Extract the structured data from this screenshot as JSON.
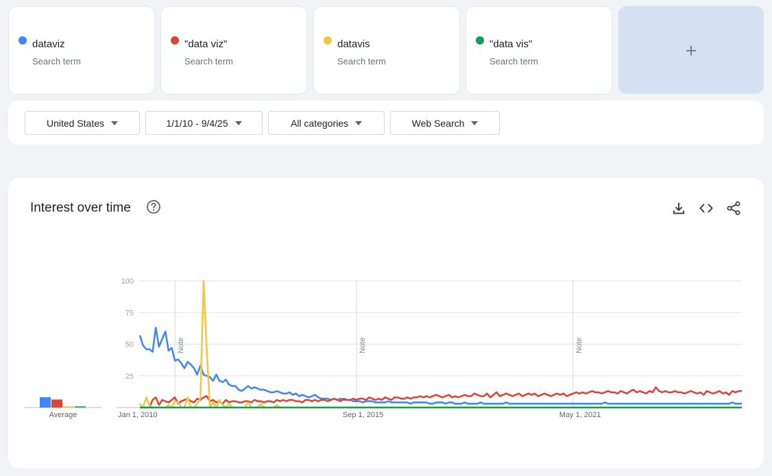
{
  "search_terms": [
    {
      "name": "dataviz",
      "sub": "Search term",
      "color": "#4285f4"
    },
    {
      "name": "\"data viz\"",
      "sub": "Search term",
      "color": "#db4437"
    },
    {
      "name": "datavis",
      "sub": "Search term",
      "color": "#f4c542"
    },
    {
      "name": "\"data vis\"",
      "sub": "Search term",
      "color": "#0f9d58"
    }
  ],
  "add_term": {
    "label": "+"
  },
  "filters": {
    "region": "United States",
    "date_range": "1/1/10 - 9/4/25",
    "category": "All categories",
    "property": "Web Search"
  },
  "chart_card": {
    "title": "Interest over time",
    "icons": [
      "help-icon",
      "download-icon",
      "embed-icon",
      "share-icon"
    ]
  },
  "chart_data": {
    "type": "line",
    "title": "Interest over time",
    "xlabel": "",
    "ylabel": "",
    "ylim": [
      0,
      100
    ],
    "yticks": [
      25,
      50,
      75,
      100
    ],
    "xtick_labels": [
      {
        "label": "Jan 1, 2010",
        "month_index": 0
      },
      {
        "label": "Sep 1, 2015",
        "month_index": 68
      },
      {
        "label": "May 1, 2021",
        "month_index": 136
      }
    ],
    "notes": [
      {
        "label": "Note",
        "month_index": 11
      },
      {
        "label": "Note",
        "month_index": 68
      },
      {
        "label": "Note",
        "month_index": 136
      }
    ],
    "x_start": "2010-01",
    "x_end": "2025-09",
    "interval": "monthly",
    "average_label": "Average",
    "averages": [
      9,
      7,
      1,
      1
    ],
    "series": [
      {
        "name": "dataviz",
        "color": "#4285f4",
        "values": [
          57,
          49,
          46,
          46,
          44,
          63,
          48,
          54,
          60,
          45,
          47,
          37,
          38,
          35,
          31,
          36,
          34,
          31,
          26,
          33,
          26,
          25,
          24,
          21,
          26,
          21,
          20,
          22,
          18,
          17,
          17,
          14,
          13,
          15,
          17,
          15,
          16,
          15,
          14,
          14,
          13,
          12,
          12,
          13,
          12,
          11,
          11,
          12,
          10,
          11,
          9,
          10,
          9,
          8,
          9,
          10,
          8,
          7,
          7,
          7,
          6,
          7,
          6,
          7,
          6,
          6,
          6,
          5,
          5,
          5,
          4,
          5,
          5,
          5,
          4,
          4,
          4,
          4,
          5,
          4,
          4,
          4,
          4,
          4,
          4,
          3,
          4,
          4,
          4,
          4,
          4,
          3,
          3,
          4,
          4,
          4,
          3,
          4,
          4,
          3,
          3,
          3,
          4,
          3,
          3,
          3,
          3,
          4,
          3,
          3,
          3,
          3,
          3,
          3,
          3,
          4,
          3,
          3,
          3,
          3,
          3,
          3,
          3,
          3,
          3,
          3,
          3,
          3,
          3,
          3,
          3,
          3,
          3,
          3,
          3,
          3,
          3,
          3,
          3,
          3,
          3,
          3,
          3,
          3,
          3,
          3,
          4,
          3,
          3,
          3,
          3,
          3,
          3,
          3,
          3,
          3,
          3,
          3,
          3,
          3,
          3,
          3,
          3,
          3,
          3,
          3,
          3,
          3,
          3,
          3,
          3,
          3,
          3,
          3,
          3,
          3,
          3,
          3,
          3,
          3,
          3,
          3,
          3,
          3,
          3,
          3,
          4,
          3,
          3,
          3
        ]
      },
      {
        "name": "\"data viz\"",
        "color": "#db4437",
        "values": [
          0,
          0,
          0,
          0,
          6,
          8,
          2,
          6,
          5,
          4,
          6,
          8,
          3,
          5,
          6,
          7,
          5,
          4,
          7,
          6,
          8,
          9,
          5,
          6,
          4,
          5,
          3,
          6,
          4,
          5,
          5,
          4,
          4,
          5,
          5,
          4,
          6,
          5,
          5,
          4,
          5,
          5,
          4,
          6,
          5,
          6,
          5,
          6,
          6,
          5,
          5,
          4,
          6,
          6,
          5,
          6,
          5,
          6,
          6,
          5,
          6,
          7,
          6,
          5,
          7,
          6,
          6,
          7,
          6,
          7,
          7,
          6,
          8,
          7,
          6,
          7,
          6,
          8,
          7,
          6,
          8,
          8,
          7,
          7,
          8,
          7,
          8,
          8,
          9,
          8,
          9,
          8,
          9,
          10,
          9,
          8,
          9,
          10,
          8,
          9,
          8,
          9,
          10,
          9,
          9,
          11,
          10,
          9,
          9,
          11,
          8,
          10,
          12,
          9,
          10,
          11,
          10,
          9,
          10,
          11,
          9,
          10,
          11,
          10,
          11,
          9,
          10,
          11,
          10,
          9,
          10,
          11,
          10,
          11,
          9,
          10,
          11,
          12,
          11,
          12,
          11,
          12,
          13,
          12,
          12,
          11,
          12,
          13,
          12,
          12,
          11,
          13,
          12,
          11,
          13,
          14,
          12,
          13,
          12,
          11,
          13,
          12,
          16,
          13,
          12,
          13,
          12,
          12,
          13,
          12,
          12,
          11,
          12,
          13,
          12,
          11,
          12,
          10,
          13,
          12,
          11,
          12,
          13,
          11,
          12,
          10,
          13,
          12,
          13,
          13
        ]
      },
      {
        "name": "datavis",
        "color": "#f4c542",
        "values": [
          3,
          0,
          8,
          2,
          0,
          0,
          0,
          0,
          0,
          2,
          0,
          5,
          4,
          0,
          0,
          8,
          0,
          0,
          3,
          7,
          100,
          45,
          0,
          4,
          0,
          6,
          2,
          0,
          3,
          0,
          0,
          0,
          0,
          0,
          4,
          0,
          0,
          0,
          3,
          0,
          0,
          0,
          0,
          2,
          0,
          0,
          0,
          0,
          0,
          0,
          0,
          0,
          0,
          0,
          0,
          0,
          0,
          0,
          0,
          0,
          0,
          0,
          0,
          0,
          0,
          0,
          0,
          0,
          0,
          0,
          0,
          0,
          0,
          0,
          0,
          0,
          0,
          0,
          0,
          0,
          0,
          0,
          0,
          0,
          0,
          0,
          0,
          0,
          0,
          0,
          0,
          0,
          0,
          0,
          0,
          0,
          0,
          0,
          0,
          0,
          0,
          0,
          0,
          0,
          0,
          0,
          0,
          0,
          0,
          0,
          0,
          0,
          0,
          0,
          0,
          0,
          0,
          0,
          0,
          0,
          0,
          0,
          0,
          0,
          0,
          0,
          0,
          0,
          0,
          0,
          0,
          0,
          0,
          0,
          0,
          0,
          0,
          0,
          0,
          0,
          0,
          0,
          0,
          0,
          0,
          0,
          0,
          0,
          0,
          0,
          0,
          0,
          0,
          0,
          0,
          0,
          0,
          0,
          0,
          0,
          0,
          0,
          0,
          0,
          0,
          0,
          0,
          0,
          0,
          0,
          0,
          0,
          0,
          0,
          0,
          0,
          0,
          0,
          0,
          0,
          0,
          0,
          0,
          0,
          0,
          0,
          0,
          0,
          0,
          0
        ]
      },
      {
        "name": "\"data vis\"",
        "color": "#0f9d58",
        "values": [
          0,
          0,
          0,
          0,
          0,
          0,
          0,
          0,
          0,
          0,
          0,
          0,
          0,
          0,
          0,
          0,
          0,
          0,
          0,
          0,
          0,
          0,
          0,
          0,
          0,
          0,
          0,
          0,
          0,
          0,
          0,
          0,
          0,
          0,
          0,
          0,
          0,
          0,
          0,
          0,
          0,
          0,
          0,
          0,
          0,
          0,
          0,
          0,
          0,
          0,
          0,
          0,
          0,
          0,
          0,
          0,
          0,
          0,
          0,
          0,
          0,
          0,
          0,
          0,
          0,
          0,
          0,
          0,
          0,
          0,
          0,
          0,
          0,
          0,
          0,
          0,
          0,
          0,
          0,
          0,
          0,
          0,
          0,
          0,
          0,
          0,
          0,
          0,
          0,
          0,
          0,
          0,
          0,
          0,
          0,
          0,
          0,
          0,
          0,
          0,
          0,
          0,
          0,
          0,
          0,
          0,
          0,
          0,
          0,
          0,
          0,
          0,
          0,
          0,
          0,
          0,
          0,
          0,
          0,
          0,
          0,
          0,
          0,
          0,
          0,
          0,
          0,
          0,
          0,
          0,
          0,
          0,
          0,
          0,
          0,
          0,
          0,
          0,
          0,
          0,
          0,
          0,
          0,
          0,
          0,
          0,
          0,
          0,
          0,
          0,
          0,
          0,
          0,
          0,
          0,
          0,
          0,
          0,
          0,
          0,
          0,
          0,
          0,
          0,
          0,
          0,
          0,
          0,
          0,
          0,
          0,
          0,
          0,
          0,
          0,
          0,
          0,
          0,
          0,
          0,
          0,
          0,
          0,
          0,
          0,
          0,
          0,
          0,
          0,
          0
        ]
      }
    ]
  }
}
